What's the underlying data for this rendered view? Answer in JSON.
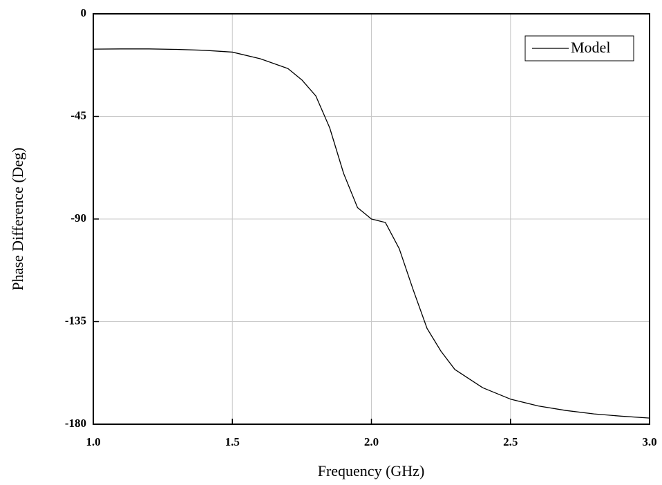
{
  "chart_data": {
    "type": "line",
    "x_label": "Frequency (GHz)",
    "y_label": "Phase Difference (Deg)",
    "x": [
      1.0,
      1.1,
      1.2,
      1.3,
      1.4,
      1.5,
      1.6,
      1.7,
      1.75,
      1.8,
      1.85,
      1.9,
      1.95,
      2.0,
      2.05,
      2.1,
      2.15,
      2.2,
      2.25,
      2.3,
      2.4,
      2.5,
      2.6,
      2.7,
      2.8,
      2.9,
      3.0
    ],
    "series": [
      {
        "name": "Model",
        "color": "#000000",
        "values": [
          -15.5,
          -15.4,
          -15.4,
          -15.6,
          -16.0,
          -16.8,
          -19.7,
          -24,
          -29,
          -36,
          -50,
          -70,
          -85,
          -90,
          -91.5,
          -103,
          -121,
          -138,
          -148,
          -156,
          -164,
          -169,
          -172,
          -174,
          -175.5,
          -176.5,
          -177.3
        ]
      }
    ],
    "xlim": [
      1.0,
      3.0
    ],
    "ylim": [
      -180,
      0
    ],
    "xticks": [
      {
        "value": 1.0,
        "label": "1.0"
      },
      1.5,
      {
        "value": 2.0,
        "label": "2.0"
      },
      2.5,
      {
        "value": 3.0,
        "label": "3.0"
      }
    ],
    "yticks": [
      -180,
      -135,
      -90,
      -45,
      0
    ],
    "grid": true,
    "legend": "upper right"
  }
}
